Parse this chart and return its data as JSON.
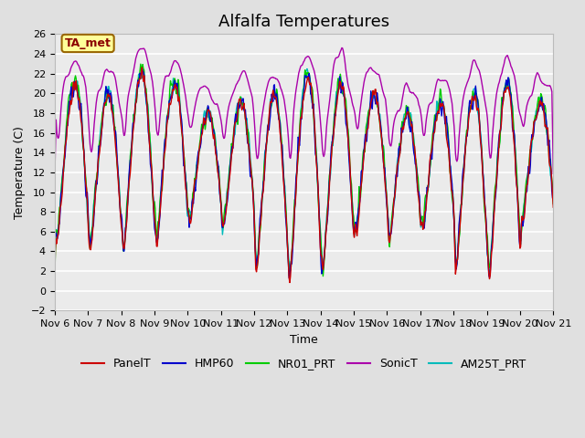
{
  "title": "Alfalfa Temperatures",
  "ylabel": "Temperature (C)",
  "xlabel": "Time",
  "annotation_text": "TA_met",
  "annotation_color": "#8B0000",
  "annotation_bg": "#FFFF99",
  "annotation_border": "#996600",
  "ylim": [
    -2,
    26
  ],
  "yticks": [
    -2,
    0,
    2,
    4,
    6,
    8,
    10,
    12,
    14,
    16,
    18,
    20,
    22,
    24,
    26
  ],
  "xtick_labels": [
    "Nov 6",
    "Nov 7",
    "Nov 8",
    "Nov 9",
    "Nov 10",
    "Nov 11",
    "Nov 12",
    "Nov 13",
    "Nov 14",
    "Nov 15",
    "Nov 16",
    "Nov 17",
    "Nov 18",
    "Nov 19",
    "Nov 20",
    "Nov 21"
  ],
  "n_days": 15,
  "points_per_day": 48,
  "series_colors": {
    "PanelT": "#CC0000",
    "HMP60": "#0000CC",
    "NR01_PRT": "#00CC00",
    "SonicT": "#AA00AA",
    "AM25T_PRT": "#00BBBB"
  },
  "series_order": [
    "SonicT",
    "AM25T_PRT",
    "NR01_PRT",
    "HMP60",
    "PanelT"
  ],
  "legend_order": [
    "PanelT",
    "HMP60",
    "NR01_PRT",
    "SonicT",
    "AM25T_PRT"
  ],
  "bg_color": "#E0E0E0",
  "plot_bg_color": "#EBEBEB",
  "grid_color": "#FFFFFF",
  "title_fontsize": 13,
  "label_fontsize": 9,
  "tick_fontsize": 8,
  "legend_fontsize": 9,
  "linewidth": 1.0
}
